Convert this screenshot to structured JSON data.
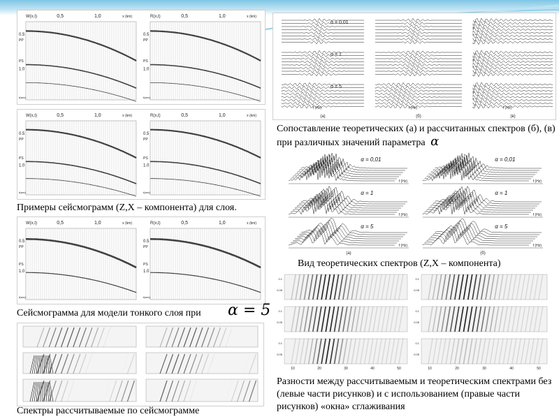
{
  "captions": {
    "seismo_examples": "Примеры сейсмограмм (Z,X – компонента) для слоя.",
    "thin_layer": "Сейсмограмма для модели тонкого слоя при",
    "thin_layer_formula": "α = 5",
    "spectra_from_seismo": "Спектры рассчитываемые по сейсмограмме",
    "comparison": "Сопоставление теоретических (а) и рассчитанных спектров (б), (в) при различных значений параметра",
    "comparison_symbol": "α",
    "theoretical_view": "Вид теоретических спектров (Z,X – компонента)",
    "differences": "Разности между рассчитываемым и теоретическим спектрами без (левые части рисунков) и с использованием (правые части рисунков) «окна» сглаживания"
  },
  "seismo_axis": {
    "ticks_x": [
      "0,5",
      "1,0"
    ],
    "unit_x": "x (km)",
    "ticks_y": [
      "0.5",
      "1.0"
    ],
    "unit_y": "t(sec)",
    "wave_labels": [
      "PP",
      "PS"
    ],
    "panel_labels": [
      "W(x,t)",
      "R(x,t)"
    ]
  },
  "comparison_panels": {
    "alpha_labels": [
      "α = 0,01",
      "α = 1",
      "α = 5"
    ],
    "sublabels": [
      "(а)",
      "(б)",
      "(в)"
    ],
    "axis_unit": "f (Hz)"
  },
  "theoretical_panels": {
    "alpha_labels": [
      "α = 0,01",
      "α = 1",
      "α = 5"
    ],
    "sublabels": [
      "(а)",
      "(б)"
    ],
    "axis_unit": "f (Hz)"
  },
  "difference_panels": {
    "ticks_x": [
      "10",
      "20",
      "30",
      "40",
      "50"
    ],
    "ticks_y": [
      "0.05",
      "0.1"
    ]
  },
  "colors": {
    "accent": "#7fc6e6",
    "ink": "#222222",
    "grid": "#bdbdbd"
  }
}
